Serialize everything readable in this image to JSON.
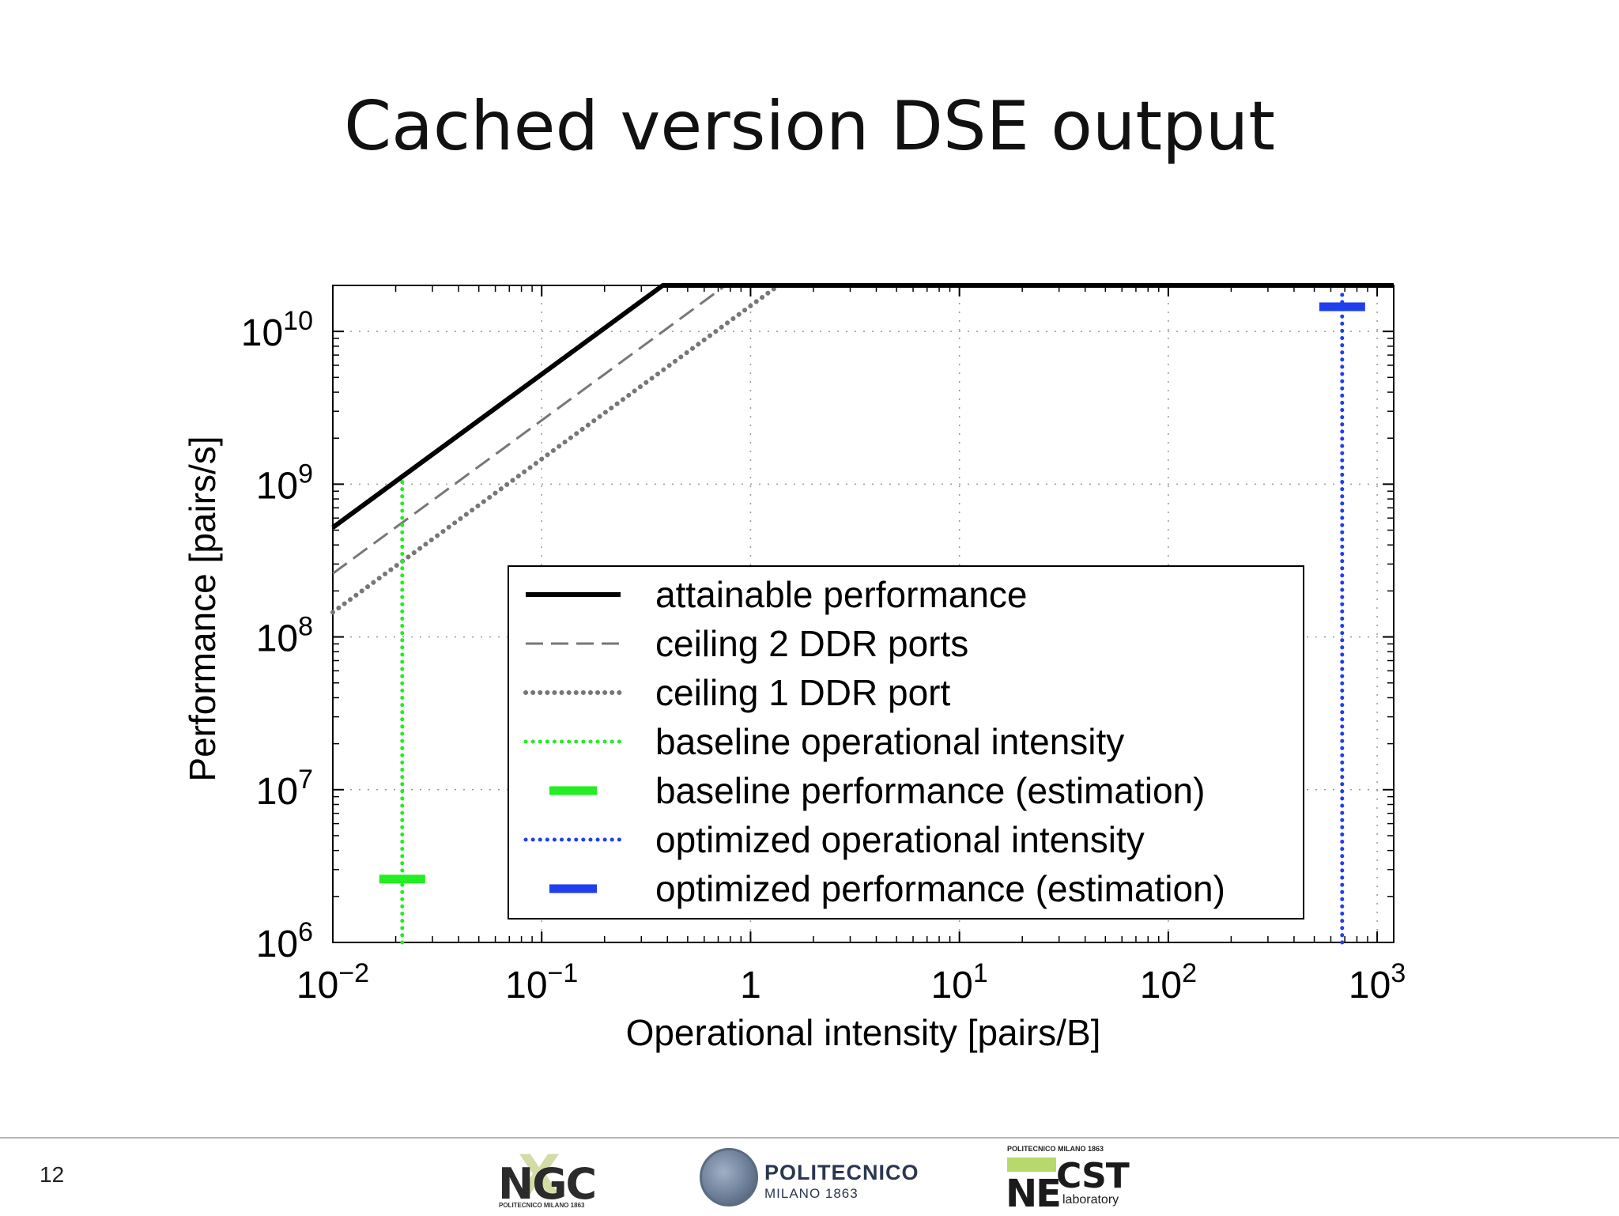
{
  "slide": {
    "title": "Cached version DSE output",
    "number": "12"
  },
  "logos": {
    "ngc": {
      "main": "NGC",
      "sub": "POLITECNICO MILANO 1863"
    },
    "polimi": {
      "name": "POLITECNICO",
      "city": "MILANO 1863"
    },
    "necst": {
      "top": "POLITECNICO MILANO 1863",
      "ne": "NE",
      "cst": "CST",
      "lab": "laboratory"
    }
  },
  "colors": {
    "attainable": "#000000",
    "ceiling": "#777777",
    "baseline": "#22ee22",
    "optimized": "#1f3fee",
    "grid": "#9a9a9a"
  },
  "chart_data": {
    "type": "line",
    "title": "",
    "xlabel": "Operational intensity [pairs/B]",
    "ylabel": "Performance [pairs/s]",
    "xscale": "log",
    "yscale": "log",
    "xlim": [
      0.01,
      1200
    ],
    "ylim": [
      1000000,
      20000000000
    ],
    "grid": true,
    "legend_position": "lower-right",
    "x_ticks": [
      {
        "value": 0.01,
        "base": "10",
        "exp": "−2"
      },
      {
        "value": 0.1,
        "base": "10",
        "exp": "−1"
      },
      {
        "value": 1,
        "base": "1",
        "exp": ""
      },
      {
        "value": 10,
        "base": "10",
        "exp": "1"
      },
      {
        "value": 100,
        "base": "10",
        "exp": "2"
      },
      {
        "value": 1000,
        "base": "10",
        "exp": "3"
      }
    ],
    "y_ticks": [
      {
        "value": 1000000,
        "base": "10",
        "exp": "6"
      },
      {
        "value": 10000000,
        "base": "10",
        "exp": "7"
      },
      {
        "value": 100000000,
        "base": "10",
        "exp": "8"
      },
      {
        "value": 1000000000,
        "base": "10",
        "exp": "9"
      },
      {
        "value": 10000000000,
        "base": "10",
        "exp": "10"
      }
    ],
    "series": [
      {
        "name": "attainable performance",
        "style": "solid",
        "color": "#000000",
        "points": [
          [
            0.01,
            520000000
          ],
          [
            0.38,
            20000000000
          ],
          [
            1200,
            20000000000
          ]
        ]
      },
      {
        "name": "ceiling 2 DDR ports",
        "style": "dashed",
        "color": "#777777",
        "points": [
          [
            0.01,
            260000000
          ],
          [
            0.76,
            20000000000
          ],
          [
            1200,
            20000000000
          ]
        ]
      },
      {
        "name": "ceiling 1 DDR port",
        "style": "dotted",
        "color": "#777777",
        "points": [
          [
            0.01,
            145000000
          ],
          [
            1.36,
            20000000000
          ],
          [
            1200,
            20000000000
          ]
        ]
      },
      {
        "name": "baseline operational intensity",
        "style": "dotted",
        "color": "#22ee22",
        "points": [
          [
            0.0215,
            1000000
          ],
          [
            0.0215,
            1100000000
          ]
        ]
      },
      {
        "name": "baseline performance (estimation)",
        "style": "marker",
        "color": "#22ee22",
        "points": [
          [
            0.0215,
            2600000
          ]
        ]
      },
      {
        "name": "optimized operational intensity",
        "style": "dotted",
        "color": "#1f3fee",
        "points": [
          [
            680,
            1000000
          ],
          [
            680,
            19000000000
          ]
        ]
      },
      {
        "name": "optimized performance (estimation)",
        "style": "marker",
        "color": "#1f3fee",
        "points": [
          [
            680,
            14500000000
          ]
        ]
      }
    ]
  }
}
